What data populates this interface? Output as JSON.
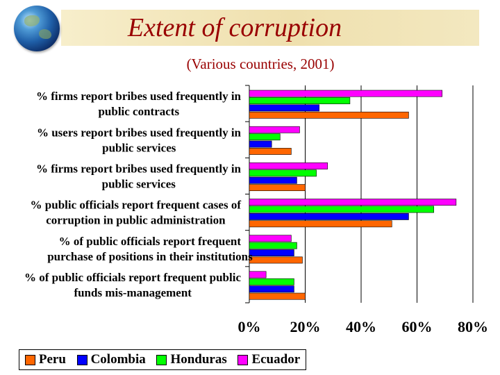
{
  "chart_data": {
    "type": "bar",
    "orientation": "horizontal",
    "title": "Extent of corruption",
    "subtitle": "(Various countries, 2001)",
    "xlabel": "",
    "ylabel": "",
    "xlim": [
      0,
      80
    ],
    "x_ticks": [
      "0%",
      "20%",
      "40%",
      "60%",
      "80%"
    ],
    "x_tick_values": [
      0,
      20,
      40,
      60,
      80
    ],
    "grid": true,
    "legend_position": "bottom-left",
    "categories": [
      [
        "% firms report bribes used frequently in",
        "public contracts"
      ],
      [
        "% users report bribes used frequently in",
        "public services"
      ],
      [
        "% firms report bribes used frequently in",
        "public services"
      ],
      [
        "% public officials report frequent cases of",
        "corruption in public administration"
      ],
      [
        "% of public officials report frequent",
        "purchase of positions in their institutions"
      ],
      [
        "% of public officials report frequent public",
        "funds mis-management"
      ]
    ],
    "series": [
      {
        "name": "Ecuador",
        "color": "#ff00ff",
        "values": [
          69,
          18,
          28,
          74,
          15,
          6
        ]
      },
      {
        "name": "Honduras",
        "color": "#00ff00",
        "values": [
          36,
          11,
          24,
          66,
          17,
          16
        ]
      },
      {
        "name": "Colombia",
        "color": "#0000ff",
        "values": [
          25,
          8,
          17,
          57,
          16,
          16
        ]
      },
      {
        "name": "Peru",
        "color": "#ff6600",
        "values": [
          57,
          15,
          20,
          51,
          19,
          20
        ]
      }
    ],
    "legend_order": [
      "Peru",
      "Colombia",
      "Honduras",
      "Ecuador"
    ]
  }
}
